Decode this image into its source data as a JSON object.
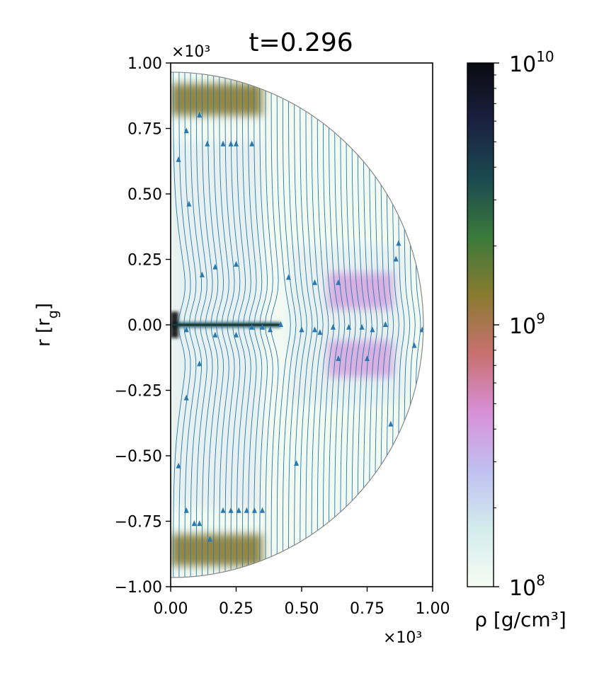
{
  "chart_data": {
    "type": "heatmap",
    "title": "t=0.296",
    "ylabel": "r [r_g]",
    "xlabel": "",
    "x_multiplier": "×10³",
    "y_multiplier": "×10³",
    "xlim": [
      0.0,
      1.0
    ],
    "ylim": [
      -1.0,
      1.0
    ],
    "x_ticks": [
      0.0,
      0.25,
      0.5,
      0.75,
      1.0
    ],
    "x_tick_labels": [
      "0.00",
      "0.25",
      "0.50",
      "0.75",
      "1.00"
    ],
    "y_ticks": [
      1.0,
      0.75,
      0.5,
      0.25,
      0.0,
      -0.25,
      -0.5,
      -0.75,
      -1.0
    ],
    "y_tick_labels": [
      "1.00",
      "0.75",
      "0.50",
      "0.25",
      "0.00",
      "−0.25",
      "−0.50",
      "−0.75",
      "−1.00"
    ],
    "domain_radius": 0.965,
    "colorbar": {
      "label": "ρ [g/cm³]",
      "scale": "log",
      "range": [
        100000000,
        10000000000
      ],
      "tick_labels": [
        {
          "value": 100000000,
          "base": "10",
          "exp": "8"
        },
        {
          "value": 1000000000,
          "base": "10",
          "exp": "9"
        },
        {
          "value": 10000000000,
          "base": "10",
          "exp": "10"
        }
      ],
      "colormap_stops": [
        "#f7fcf5",
        "#d2ecec",
        "#c0c0f0",
        "#d890d8",
        "#c87070",
        "#8a7a30",
        "#3a7a3a",
        "#1a4a50",
        "#1a2040",
        "#0a0a10"
      ]
    },
    "density_features": [
      {
        "label": "upper polar shell",
        "x_range": [
          0.0,
          0.35
        ],
        "y_center": 0.86,
        "y_halfwidth": 0.06,
        "log_rho": 9.0
      },
      {
        "label": "lower polar shell",
        "x_range": [
          0.0,
          0.35
        ],
        "y_center": -0.86,
        "y_halfwidth": 0.06,
        "log_rho": 9.0
      },
      {
        "label": "equatorial disk",
        "x_range": [
          0.0,
          0.42
        ],
        "y_center": 0.0,
        "y_halfwidth": 0.01,
        "log_rho": 9.6
      },
      {
        "label": "upper lobe",
        "x_range": [
          0.6,
          0.85
        ],
        "y_center": 0.13,
        "y_halfwidth": 0.07,
        "log_rho": 8.6
      },
      {
        "label": "lower lobe",
        "x_range": [
          0.6,
          0.85
        ],
        "y_center": -0.13,
        "y_halfwidth": 0.07,
        "log_rho": 8.6
      },
      {
        "label": "axis core",
        "x_range": [
          0.0,
          0.03
        ],
        "y_center": 0.0,
        "y_halfwidth": 0.05,
        "log_rho": 10.0
      }
    ],
    "streamline_arrows_up": [
      [
        0.03,
        0.63
      ],
      [
        0.06,
        0.74
      ],
      [
        0.11,
        0.8
      ],
      [
        0.14,
        0.69
      ],
      [
        0.2,
        0.69
      ],
      [
        0.23,
        0.69
      ],
      [
        0.25,
        0.69
      ],
      [
        0.31,
        0.69
      ],
      [
        0.07,
        0.46
      ],
      [
        0.12,
        0.19
      ],
      [
        0.17,
        0.22
      ],
      [
        0.25,
        0.23
      ],
      [
        0.45,
        0.18
      ],
      [
        0.64,
        0.16
      ],
      [
        0.55,
        0.16
      ],
      [
        0.87,
        0.31
      ],
      [
        0.86,
        0.25
      ],
      [
        0.06,
        -0.28
      ],
      [
        0.03,
        -0.54
      ],
      [
        0.06,
        -0.71
      ],
      [
        0.09,
        -0.76
      ],
      [
        0.11,
        -0.76
      ],
      [
        0.15,
        -0.82
      ],
      [
        0.2,
        -0.71
      ],
      [
        0.23,
        -0.71
      ],
      [
        0.26,
        -0.71
      ],
      [
        0.29,
        -0.71
      ],
      [
        0.32,
        -0.71
      ],
      [
        0.35,
        -0.71
      ],
      [
        0.48,
        -0.53
      ],
      [
        0.64,
        -0.13
      ],
      [
        0.75,
        -0.13
      ],
      [
        0.84,
        -0.38
      ],
      [
        0.93,
        -0.08
      ],
      [
        0.17,
        -0.04
      ],
      [
        0.25,
        -0.04
      ],
      [
        0.31,
        -0.01
      ],
      [
        0.35,
        -0.01
      ],
      [
        0.38,
        -0.02
      ],
      [
        0.42,
        0.0
      ],
      [
        0.5,
        -0.02
      ],
      [
        0.55,
        -0.02
      ],
      [
        0.57,
        -0.03
      ],
      [
        0.62,
        -0.01
      ],
      [
        0.68,
        -0.01
      ],
      [
        0.73,
        -0.01
      ],
      [
        0.77,
        -0.02
      ],
      [
        0.82,
        0.0
      ],
      [
        0.96,
        -0.02
      ],
      [
        0.11,
        -0.15
      ],
      [
        0.06,
        -0.02
      ]
    ]
  }
}
